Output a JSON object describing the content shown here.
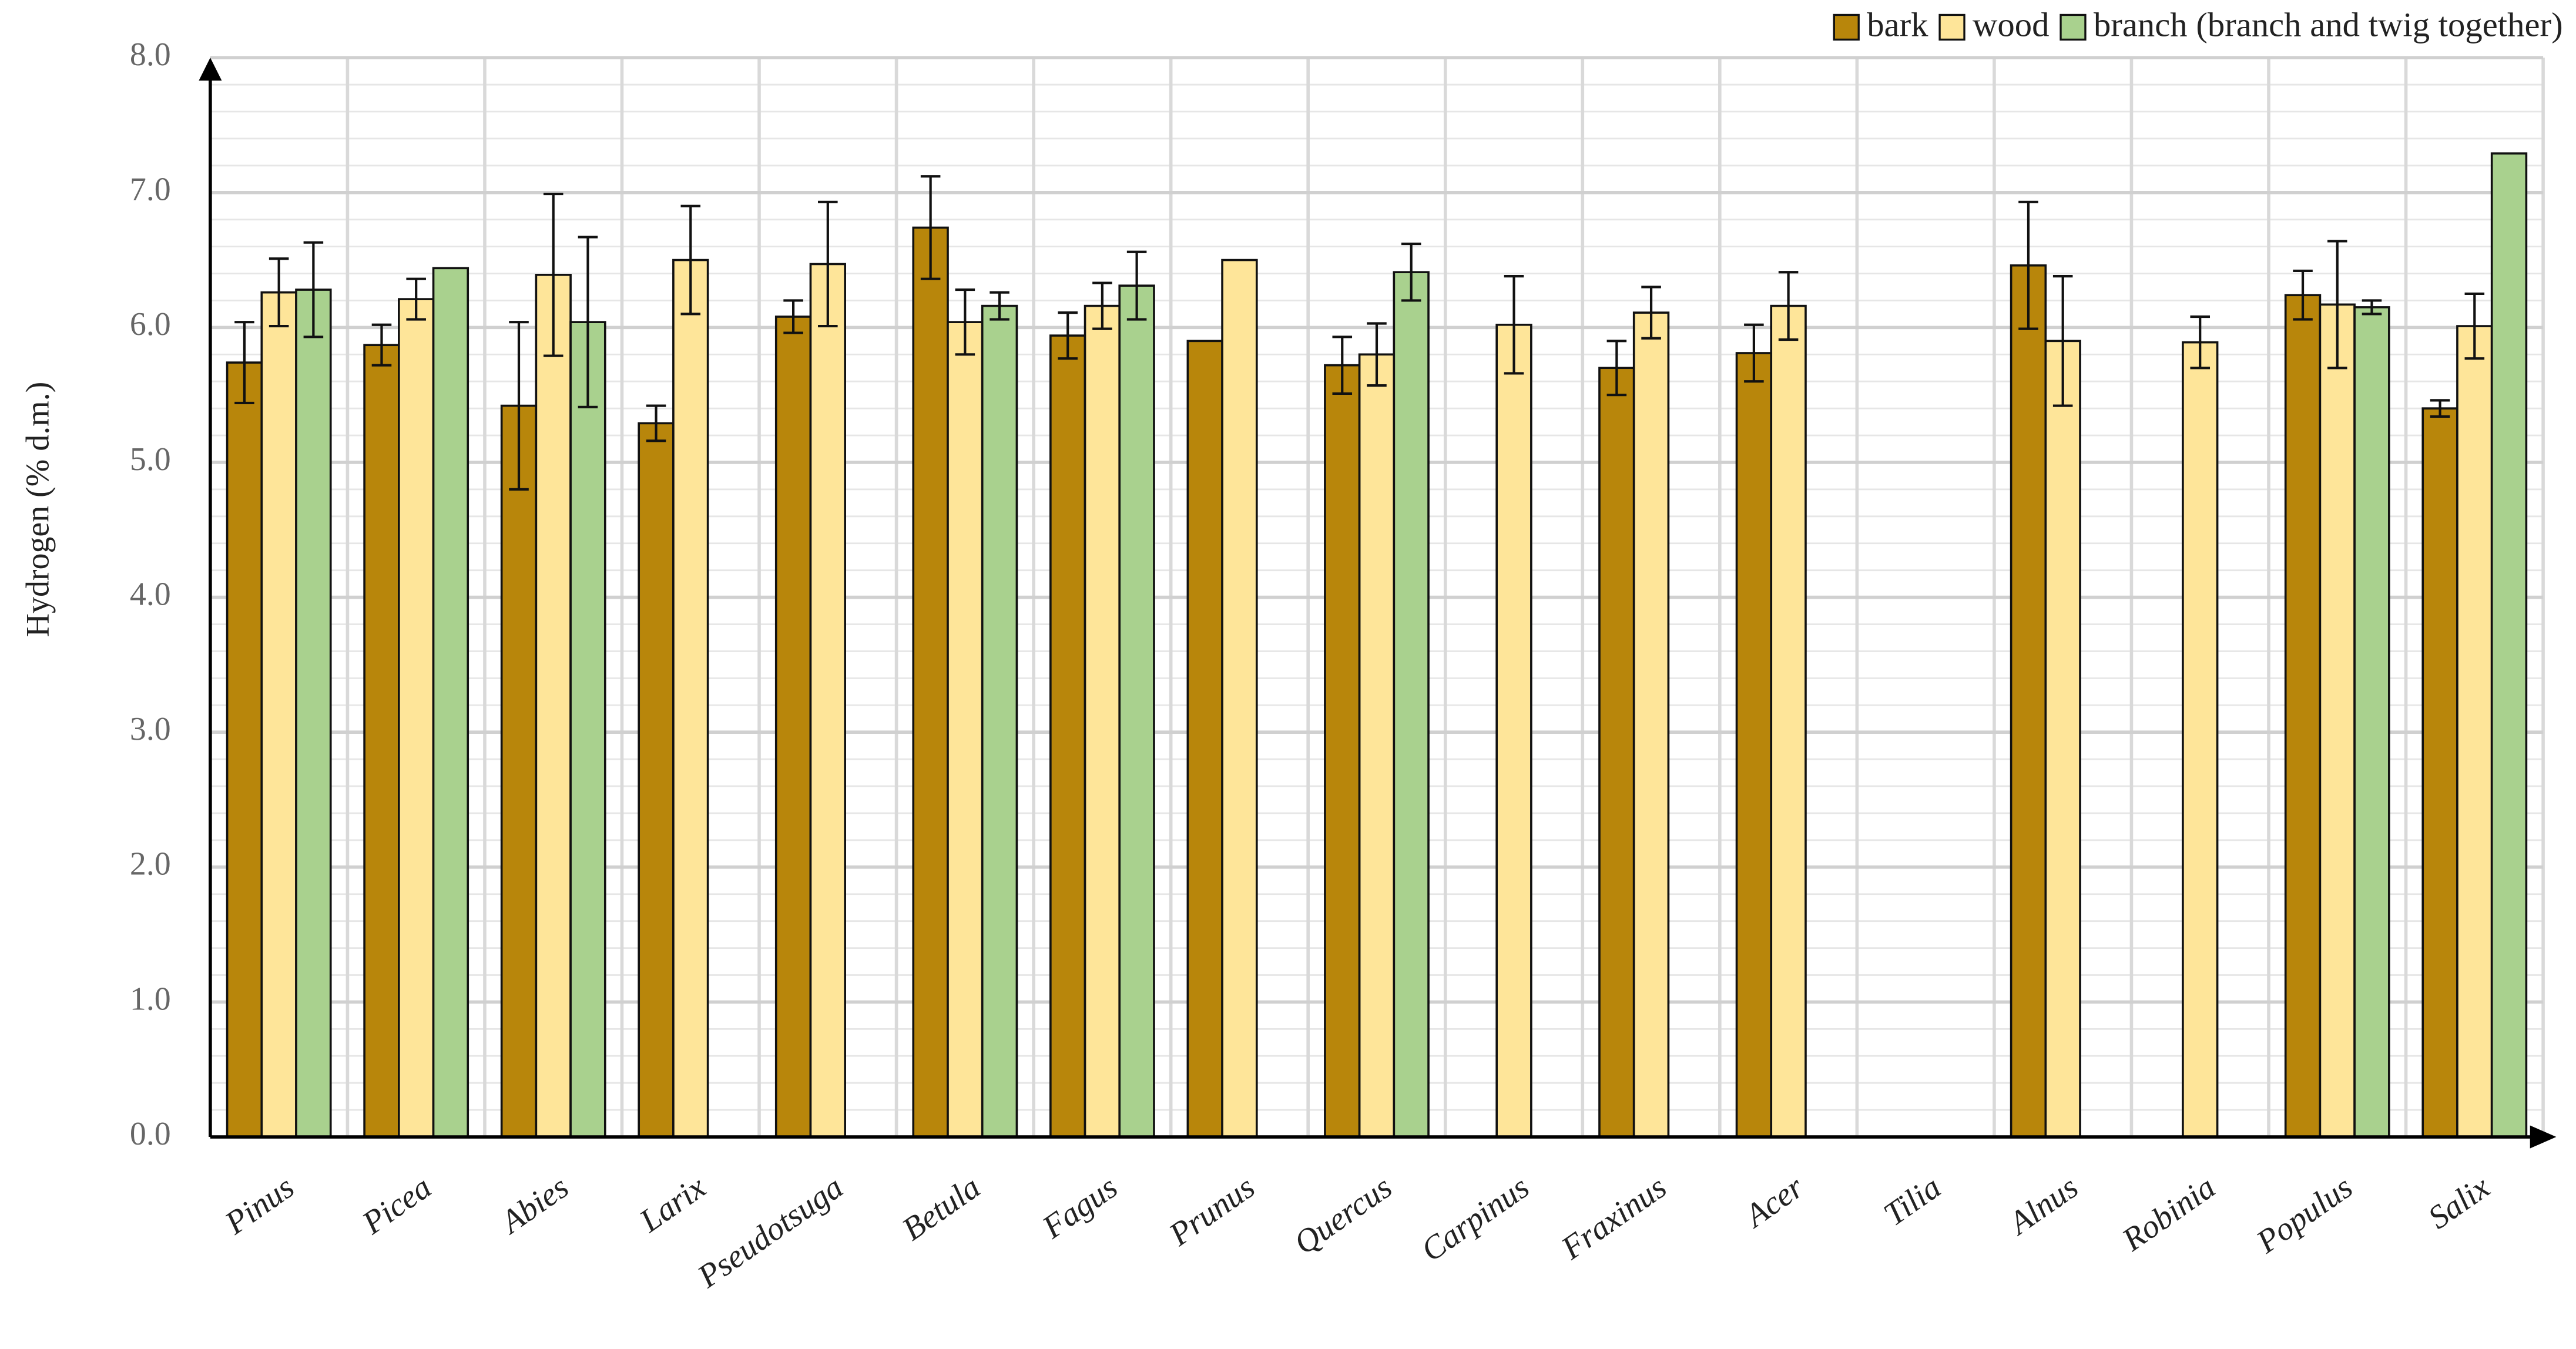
{
  "chart_data": {
    "type": "bar",
    "y_label": "Hydrogen (% d.m.)",
    "categories": [
      "Pinus",
      "Picea",
      "Abies",
      "Larix",
      "Pseudotsuga",
      "Betula",
      "Fagus",
      "Prunus",
      "Quercus",
      "Carpinus",
      "Fraxinus",
      "Acer",
      "Tilia",
      "Alnus",
      "Robinia",
      "Populus",
      "Salix"
    ],
    "series": [
      {
        "name": "bark",
        "color": "#b8860b",
        "values": [
          5.74,
          5.87,
          5.42,
          5.29,
          6.08,
          6.74,
          5.94,
          5.9,
          5.72,
          null,
          5.7,
          5.81,
          null,
          6.46,
          null,
          6.24,
          5.4
        ],
        "errors": [
          0.3,
          0.15,
          0.62,
          0.13,
          0.12,
          0.38,
          0.17,
          null,
          0.21,
          null,
          0.2,
          0.21,
          null,
          0.47,
          null,
          0.18,
          0.06
        ]
      },
      {
        "name": "wood",
        "color": "#fee599",
        "values": [
          6.26,
          6.21,
          6.39,
          6.5,
          6.47,
          6.04,
          6.16,
          6.5,
          5.8,
          6.02,
          6.11,
          6.16,
          null,
          5.9,
          5.89,
          6.17,
          6.01
        ],
        "errors": [
          0.25,
          0.15,
          0.6,
          0.4,
          0.46,
          0.24,
          0.17,
          null,
          0.23,
          0.36,
          0.19,
          0.25,
          null,
          0.48,
          0.19,
          0.47,
          0.24
        ]
      },
      {
        "name": "branch (branch and twig together)",
        "color": "#a9d18e",
        "values": [
          6.28,
          6.44,
          6.04,
          null,
          null,
          6.16,
          6.31,
          null,
          6.41,
          null,
          null,
          null,
          null,
          null,
          null,
          6.15,
          7.29
        ],
        "errors": [
          0.35,
          null,
          0.63,
          null,
          null,
          0.1,
          0.25,
          null,
          0.21,
          null,
          null,
          null,
          null,
          null,
          null,
          0.05,
          null
        ]
      }
    ],
    "ylim": [
      0,
      8
    ],
    "yticks": [
      {
        "value": 0,
        "label": "0.0"
      },
      {
        "value": 1,
        "label": "1.0"
      },
      {
        "value": 2,
        "label": "2.0"
      },
      {
        "value": 3,
        "label": "3.0"
      },
      {
        "value": 4,
        "label": "4.0"
      },
      {
        "value": 5,
        "label": "5.0"
      },
      {
        "value": 6,
        "label": "6.0"
      },
      {
        "value": 7,
        "label": "7.0"
      },
      {
        "value": 8,
        "label": "8.0"
      }
    ],
    "minor_grid": 0.2,
    "grid": true,
    "legend": "top-right"
  }
}
